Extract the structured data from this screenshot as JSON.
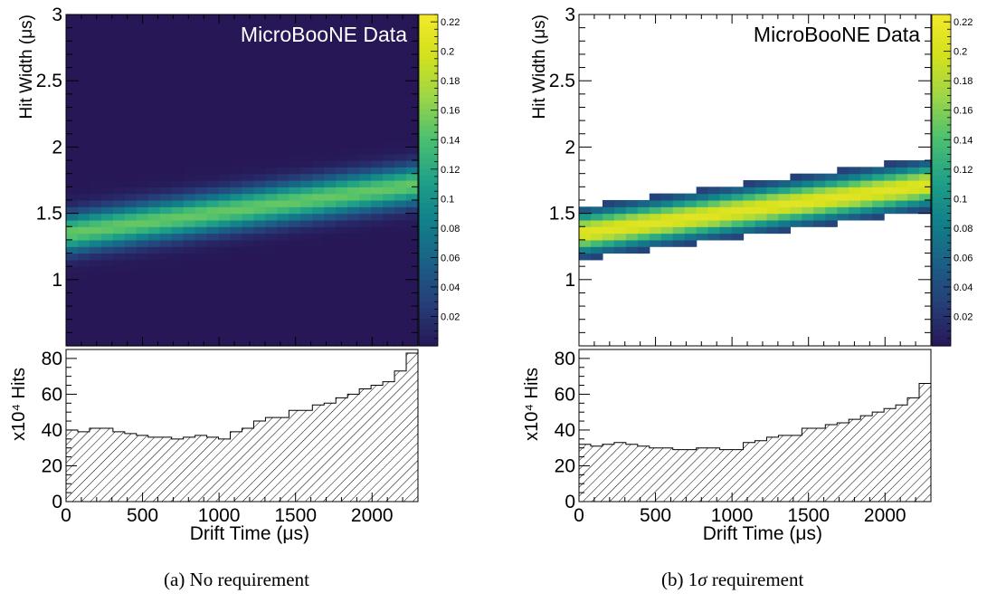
{
  "colors": {
    "colormap": [
      "#352a87",
      "#0f5cdd",
      "#1481d6",
      "#06a4ca",
      "#2eb7a4",
      "#87bf77",
      "#d1bb59",
      "#fec832",
      "#f9fb0e"
    ],
    "viridis_like": [
      "#271757",
      "#263d77",
      "#1b5f86",
      "#11808a",
      "#1fa187",
      "#4bbf70",
      "#9bd548",
      "#d2e11d",
      "#f2e82a"
    ],
    "empty_bin": "#2a1b5c"
  },
  "chart_data": [
    {
      "id": "a",
      "type": "heatmap",
      "watermark": "MicroBooNE Data",
      "ylabel": "Hit Width (μs)",
      "xlabel": "Drift Time (μs)",
      "xlim": [
        0,
        2300
      ],
      "ylim": [
        0.5,
        3
      ],
      "y_ticks": [
        "1",
        "1.5",
        "2",
        "2.5",
        "3"
      ],
      "z_ticks": [
        "0.02",
        "0.04",
        "0.06",
        "0.08",
        "0.1",
        "0.12",
        "0.14",
        "0.16",
        "0.18",
        "0.2",
        "0.22"
      ],
      "zlim": [
        0,
        0.225
      ],
      "band_center_start": 1.35,
      "band_center_end": 1.72,
      "band_sigma": 0.1,
      "band_peak": 0.15,
      "ratio": {
        "ylabel": "x10⁴ Hits",
        "ylim": [
          0,
          85
        ],
        "y_ticks": [
          "0",
          "20",
          "40",
          "60",
          "80"
        ],
        "x_ticks": [
          "0",
          "500",
          "1000",
          "1500",
          "2000"
        ],
        "values": [
          40,
          39,
          41,
          41,
          39,
          38,
          37,
          36,
          36,
          35,
          36,
          37,
          36,
          35,
          39,
          41,
          45,
          47,
          47,
          51,
          51,
          54,
          55,
          58,
          60,
          63,
          65,
          67,
          73,
          83
        ]
      },
      "caption": "(a) No requirement"
    },
    {
      "id": "b",
      "type": "heatmap",
      "watermark": "MicroBooNE Data",
      "ylabel": "Hit Width (μs)",
      "xlabel": "Drift Time (μs)",
      "xlim": [
        0,
        2300
      ],
      "ylim": [
        0.5,
        3
      ],
      "y_ticks": [
        "1",
        "1.5",
        "2",
        "2.5",
        "3"
      ],
      "z_ticks": [
        "0.02",
        "0.04",
        "0.06",
        "0.08",
        "0.1",
        "0.12",
        "0.14",
        "0.16",
        "0.18",
        "0.2",
        "0.22"
      ],
      "zlim": [
        0,
        0.225
      ],
      "band_center_start": 1.35,
      "band_center_end": 1.72,
      "band_sigma": 0.1,
      "band_peak": 0.21,
      "band_halfwidth": 0.2,
      "ratio": {
        "ylabel": "x10⁴ Hits",
        "ylim": [
          0,
          85
        ],
        "y_ticks": [
          "0",
          "20",
          "40",
          "60",
          "80"
        ],
        "x_ticks": [
          "0",
          "500",
          "1000",
          "1500",
          "2000"
        ],
        "values": [
          32,
          31,
          32,
          33,
          32,
          31,
          30,
          30,
          29,
          29,
          30,
          30,
          29,
          29,
          33,
          34,
          36,
          37,
          37,
          41,
          41,
          43,
          44,
          46,
          48,
          50,
          52,
          54,
          58,
          66
        ]
      },
      "caption_prefix": "(b) 1",
      "caption_symbol": "σ",
      "caption_suffix": " requirement"
    }
  ]
}
